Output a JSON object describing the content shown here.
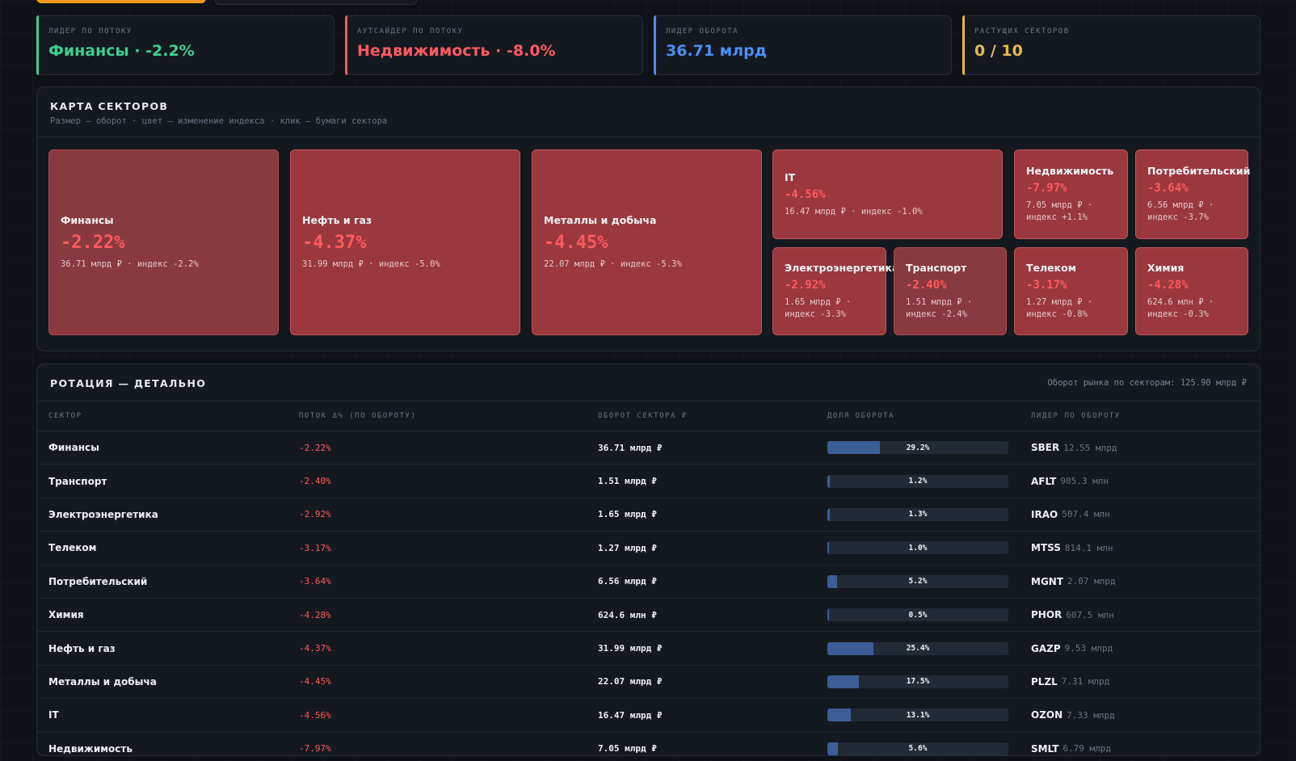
{
  "kpis": [
    {
      "label": "ЛИДЕР ПО ПОТОКУ",
      "value": "Финансы · -2.2%",
      "color": "#3ecf8e"
    },
    {
      "label": "АУТСАЙДЕР ПО ПОТОКУ",
      "value": "Недвижимость · -8.0%",
      "color": "#ff5a5f"
    },
    {
      "label": "ЛИДЕР ОБОРОТА",
      "value": "36.71 млрд",
      "color": "#4d8ef7"
    },
    {
      "label": "РАСТУЩИХ СЕКТОРОВ",
      "value": "0 / 10",
      "color": "#e8b84a"
    }
  ],
  "map": {
    "title": "КАРТА СЕКТОРОВ",
    "subtitle": "Размер — оборот · цвет — изменение индекса · клик — бумаги сектора",
    "tiles": [
      {
        "name": "Финансы",
        "change": "-2.22%",
        "meta": "36.71 млрд ₽ · индекс -2.2%"
      },
      {
        "name": "Нефть и газ",
        "change": "-4.37%",
        "meta": "31.99 млрд ₽ · индекс -5.0%"
      },
      {
        "name": "Металлы и добыча",
        "change": "-4.45%",
        "meta": "22.07 млрд ₽ · индекс -5.3%"
      },
      {
        "name": "IT",
        "change": "-4.56%",
        "meta": "16.47 млрд ₽ · индекс -1.0%"
      },
      {
        "name": "Недвижимость",
        "change": "-7.97%",
        "meta": "7.05 млрд ₽ · индекс +1.1%"
      },
      {
        "name": "Потребительский",
        "change": "-3.64%",
        "meta": "6.56 млрд ₽ · индекс -3.7%"
      },
      {
        "name": "Электроэнергетика",
        "change": "-2.92%",
        "meta": "1.65 млрд ₽ · индекс -3.3%"
      },
      {
        "name": "Транспорт",
        "change": "-2.40%",
        "meta": "1.51 млрд ₽ · индекс -2.4%"
      },
      {
        "name": "Телеком",
        "change": "-3.17%",
        "meta": "1.27 млрд ₽ · индекс -0.8%"
      },
      {
        "name": "Химия",
        "change": "-4.28%",
        "meta": "624.6 млн ₽ · индекс -0.3%"
      }
    ]
  },
  "table": {
    "title": "РОТАЦИЯ — ДЕТАЛЬНО",
    "market_total": "Оборот рынка по секторам: 125.90 млрд ₽",
    "headers": [
      "СЕКТОР",
      "ПОТОК Δ% (ПО ОБОРОТУ)",
      "ОБОРОТ СЕКТОРА ₽",
      "ДОЛЯ ОБОРОТА",
      "ЛИДЕР ПО ОБОРОТУ"
    ],
    "rows": [
      {
        "sector": "Финансы",
        "flow": "-2.22%",
        "turnover": "36.71 млрд ₽",
        "share": "29.2%",
        "share_value": 29.2,
        "leader": "SBER",
        "leader_turnover": "12.55 млрд"
      },
      {
        "sector": "Транспорт",
        "flow": "-2.40%",
        "turnover": "1.51 млрд ₽",
        "share": "1.2%",
        "share_value": 1.2,
        "leader": "AFLT",
        "leader_turnover": "905.3 млн"
      },
      {
        "sector": "Электроэнергетика",
        "flow": "-2.92%",
        "turnover": "1.65 млрд ₽",
        "share": "1.3%",
        "share_value": 1.3,
        "leader": "IRAO",
        "leader_turnover": "507.4 млн"
      },
      {
        "sector": "Телеком",
        "flow": "-3.17%",
        "turnover": "1.27 млрд ₽",
        "share": "1.0%",
        "share_value": 1.0,
        "leader": "MTSS",
        "leader_turnover": "814.1 млн"
      },
      {
        "sector": "Потребительский",
        "flow": "-3.64%",
        "turnover": "6.56 млрд ₽",
        "share": "5.2%",
        "share_value": 5.2,
        "leader": "MGNT",
        "leader_turnover": "2.07 млрд"
      },
      {
        "sector": "Химия",
        "flow": "-4.28%",
        "turnover": "624.6 млн ₽",
        "share": "0.5%",
        "share_value": 0.5,
        "leader": "PHOR",
        "leader_turnover": "607.5 млн"
      },
      {
        "sector": "Нефть и газ",
        "flow": "-4.37%",
        "turnover": "31.99 млрд ₽",
        "share": "25.4%",
        "share_value": 25.4,
        "leader": "GAZP",
        "leader_turnover": "9.53 млрд"
      },
      {
        "sector": "Металлы и добыча",
        "flow": "-4.45%",
        "turnover": "22.07 млрд ₽",
        "share": "17.5%",
        "share_value": 17.5,
        "leader": "PLZL",
        "leader_turnover": "7.31 млрд"
      },
      {
        "sector": "IT",
        "flow": "-4.56%",
        "turnover": "16.47 млрд ₽",
        "share": "13.1%",
        "share_value": 13.1,
        "leader": "OZON",
        "leader_turnover": "7.33 млрд"
      },
      {
        "sector": "Недвижимость",
        "flow": "-7.97%",
        "turnover": "7.05 млрд ₽",
        "share": "5.6%",
        "share_value": 5.6,
        "leader": "SMLT",
        "leader_turnover": "6.79 млрд"
      }
    ]
  }
}
